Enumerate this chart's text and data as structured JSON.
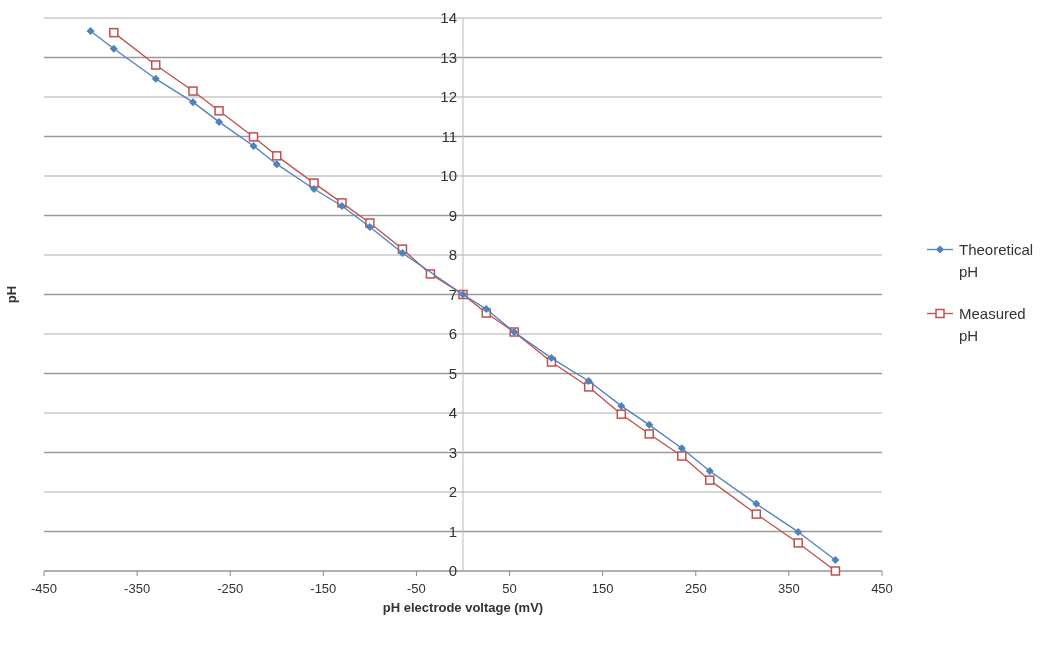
{
  "chart_data": {
    "type": "line",
    "xlabel": "pH electrode voltage (mV)",
    "ylabel": "pH",
    "xlim": [
      -450,
      450
    ],
    "xticks": [
      -450,
      -350,
      -250,
      -150,
      -50,
      50,
      150,
      250,
      350,
      450
    ],
    "ylim": [
      0,
      14
    ],
    "yticks": [
      0,
      1,
      2,
      3,
      4,
      5,
      6,
      7,
      8,
      9,
      10,
      11,
      12,
      13,
      14
    ],
    "grid": "y",
    "legend": "right",
    "series": [
      {
        "name": "Theoretical pH",
        "color": "#4f81bd",
        "marker": "diamond",
        "x": [
          -400,
          -375,
          -330,
          -290,
          -262,
          -225,
          -200,
          -160,
          -130,
          -100,
          -65,
          0,
          25,
          55,
          95,
          135,
          170,
          200,
          235,
          265,
          315,
          360,
          400
        ],
        "values": [
          13.67,
          13.22,
          12.46,
          11.87,
          11.37,
          10.76,
          10.3,
          9.67,
          9.24,
          8.71,
          8.05,
          7.0,
          6.63,
          6.05,
          5.39,
          4.81,
          4.18,
          3.7,
          3.11,
          2.53,
          1.7,
          0.99,
          0.28
        ]
      },
      {
        "name": "Measured pH",
        "color": "#c0504d",
        "marker": "square",
        "x": [
          -375,
          -330,
          -290,
          -262,
          -225,
          -200,
          -160,
          -130,
          -100,
          -65,
          -35,
          0,
          25,
          55,
          95,
          135,
          170,
          200,
          235,
          265,
          315,
          360,
          400
        ],
        "values": [
          13.63,
          12.81,
          12.15,
          11.65,
          10.99,
          10.51,
          9.82,
          9.32,
          8.81,
          8.15,
          7.52,
          7.0,
          6.53,
          6.05,
          5.29,
          4.66,
          3.97,
          3.47,
          2.91,
          2.3,
          1.44,
          0.71,
          0.0
        ]
      }
    ]
  }
}
